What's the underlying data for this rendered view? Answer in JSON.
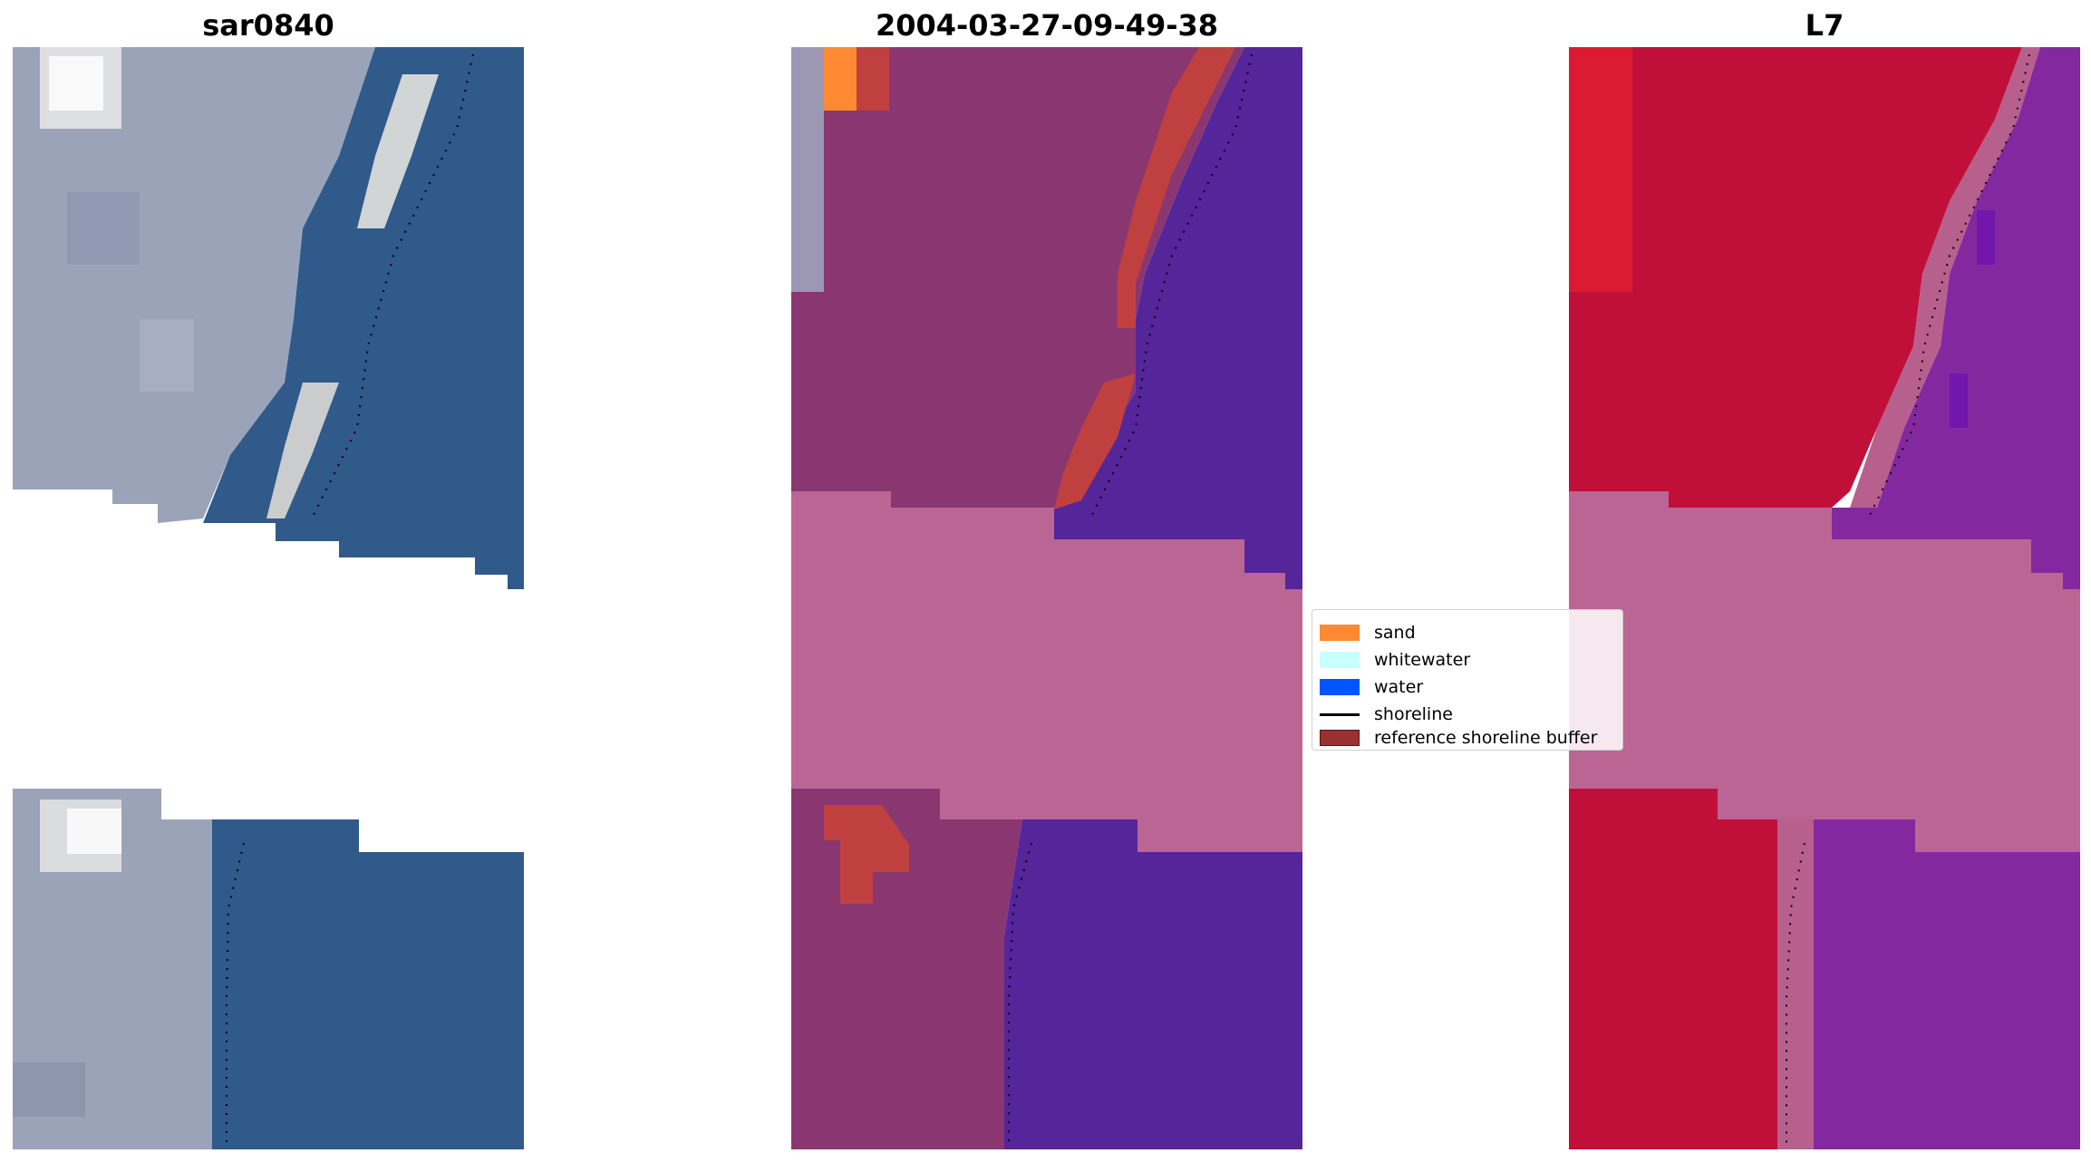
{
  "panels": [
    {
      "title": "sar0840"
    },
    {
      "title": "2004-03-27-09-49-38"
    },
    {
      "title": "L7"
    }
  ],
  "legend": {
    "items": [
      {
        "label": "sand",
        "color": "#ff8a33",
        "kind": "patch"
      },
      {
        "label": "whitewater",
        "color": "#c8ffff",
        "kind": "patch"
      },
      {
        "label": "water",
        "color": "#0055ff",
        "kind": "patch"
      },
      {
        "label": "shoreline",
        "color": "#000000",
        "kind": "line"
      },
      {
        "label": "reference shoreline buffer",
        "color": "#9b3030",
        "kind": "patch"
      }
    ]
  },
  "colors": {
    "rgb_land": "#9aa3b8",
    "rgb_water": "#2f5a8a",
    "classified_land": "#8a3670",
    "classified_water": "#55259a",
    "classified_buffer": "#c0403f",
    "classified_sand": "#ff8a33",
    "nodata_band": "#bb6594",
    "l7_land": "#c0103a",
    "l7_water": "#8428a0",
    "l7_transition": "#b7608e"
  }
}
